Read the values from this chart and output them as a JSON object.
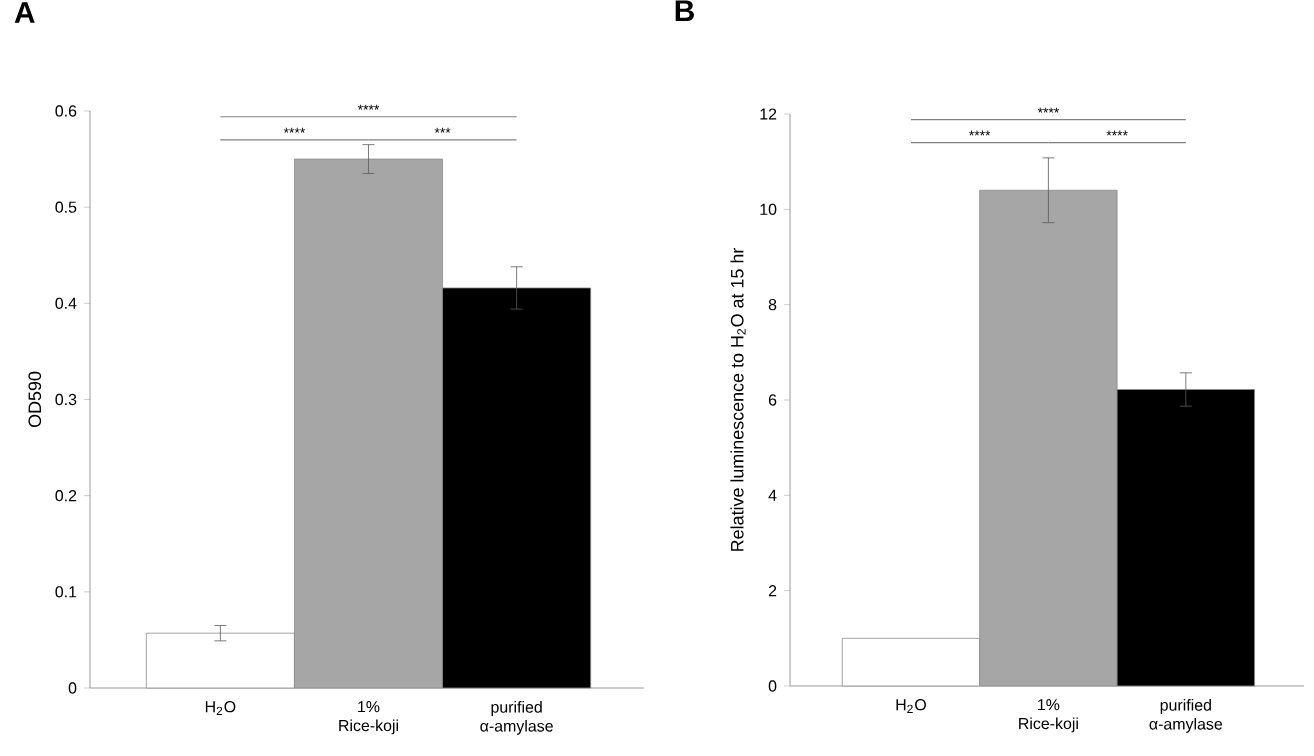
{
  "chart_data": [
    {
      "type": "bar",
      "title": "A",
      "ylabel": "OD590",
      "categories": [
        "H$_{2}$O",
        "1% Rice-koji",
        "purified α-amylase"
      ],
      "values": [
        0.057,
        0.55,
        0.416
      ],
      "errors": [
        0.008,
        0.015,
        0.022
      ],
      "colors": [
        "#ffffff",
        "#a6a6a6",
        "#000000"
      ],
      "ylim": [
        0,
        0.6
      ],
      "yticks": [
        0,
        0.1,
        0.2,
        0.3,
        0.4,
        0.5,
        0.6
      ],
      "grid": false,
      "annotations": [
        "****",
        "****",
        "***"
      ]
    },
    {
      "type": "bar",
      "title": "B",
      "ylabel": "Relative luminescence to H$_{2}$O at 15 hr",
      "categories": [
        "H$_{2}$O",
        "1% Rice-koji",
        "purified α-amylase"
      ],
      "values": [
        1.0,
        10.4,
        6.22
      ],
      "errors": [
        null,
        0.68,
        0.35
      ],
      "colors": [
        "#ffffff",
        "#a6a6a6",
        "#000000"
      ],
      "ylim": [
        0,
        12
      ],
      "yticks": [
        0,
        2,
        4,
        6,
        8,
        10,
        12
      ],
      "grid": false,
      "annotations": [
        "****",
        "****",
        "****"
      ]
    }
  ]
}
